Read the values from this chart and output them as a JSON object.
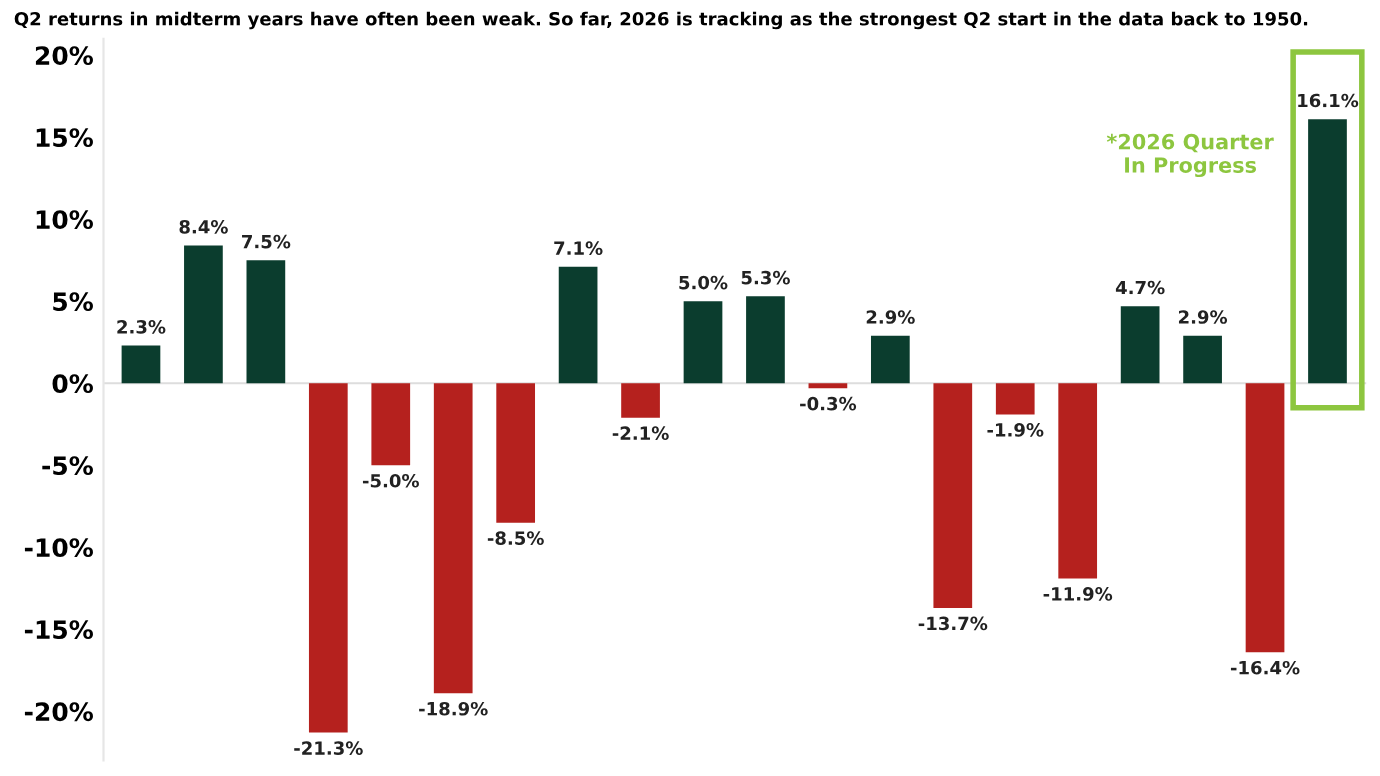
{
  "chart_data": {
    "type": "bar",
    "title": "Q2 returns in midterm years have often been weak. So far, 2026 is tracking as the strongest Q2 start in the data back to 1950.",
    "categories": [
      null,
      null,
      null,
      null,
      null,
      null,
      null,
      null,
      null,
      null,
      null,
      null,
      null,
      null,
      null,
      null,
      null,
      null,
      null,
      null
    ],
    "values": [
      2.3,
      8.4,
      7.5,
      -21.3,
      -5.0,
      -18.9,
      -8.5,
      7.1,
      -2.1,
      5.0,
      5.3,
      -0.3,
      2.9,
      -13.7,
      -1.9,
      -11.9,
      4.7,
      2.9,
      -16.4,
      16.1
    ],
    "colors": [
      "#0b3d2e",
      "#0b3d2e",
      "#0b3d2e",
      "#b5211e",
      "#b5211e",
      "#b5211e",
      "#b5211e",
      "#0b3d2e",
      "#b5211e",
      "#0b3d2e",
      "#0b3d2e",
      "#b5211e",
      "#0b3d2e",
      "#b5211e",
      "#b5211e",
      "#b5211e",
      "#0b3d2e",
      "#0b3d2e",
      "#b5211e",
      "#0b3d2e"
    ],
    "value_labels": [
      "2.3%",
      "8.4%",
      "7.5%",
      "-21.3%",
      "-5.0%",
      "-18.9%",
      "-8.5%",
      "7.1%",
      "-2.1%",
      "5.0%",
      "5.3%",
      "-0.3%",
      "2.9%",
      "-13.7%",
      "-1.9%",
      "-11.9%",
      "4.7%",
      "2.9%",
      "-16.4%",
      "16.1%"
    ],
    "ylim": [
      -23,
      21
    ],
    "yticks": [
      {
        "value": -20,
        "label": "-20%"
      },
      {
        "value": -15,
        "label": "-15%"
      },
      {
        "value": -10,
        "label": "-10%"
      },
      {
        "value": -5,
        "label": "-5%"
      },
      {
        "value": 0,
        "label": "0%"
      },
      {
        "value": 5,
        "label": "5%"
      },
      {
        "value": 10,
        "label": "10%"
      },
      {
        "value": 15,
        "label": "15%"
      },
      {
        "value": 20,
        "label": "20%"
      }
    ],
    "annotations": [
      "*2026 Quarter\nIn Progress"
    ],
    "ref_lines": [
      {
        "axis": "y",
        "value": 0,
        "color": "#dddddd"
      }
    ],
    "grid": false,
    "legend": false
  }
}
